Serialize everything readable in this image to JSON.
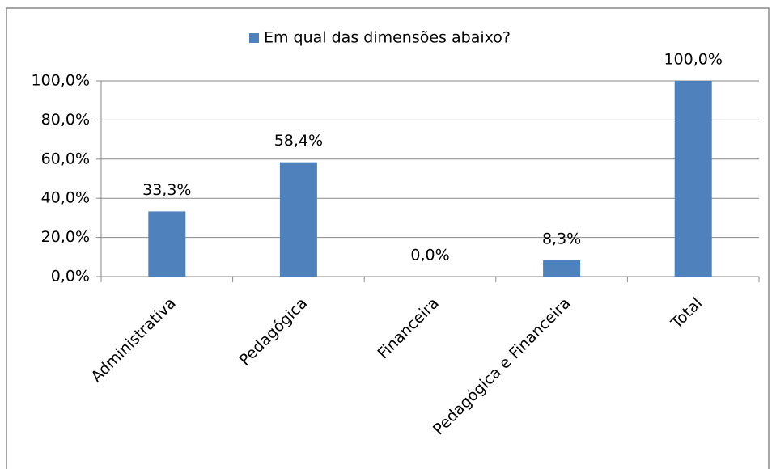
{
  "chart_data": {
    "type": "bar",
    "categories": [
      "Administrativa",
      "Pedagógica",
      "Financeira",
      "Pedagógica e Financeira",
      "Total"
    ],
    "series": [
      {
        "name": "Em qual das dimensões abaixo?",
        "color": "#4f81bd",
        "values": [
          33.3,
          58.4,
          0,
          8.3,
          100
        ],
        "value_labels": [
          "33,3%",
          "58,4%",
          "0,0%",
          "8,3%",
          "100,0%"
        ]
      }
    ],
    "ylim": [
      0,
      100
    ],
    "yticks": [
      {
        "value": 0,
        "label": "0,0%"
      },
      {
        "value": 20,
        "label": "20,0%"
      },
      {
        "value": 40,
        "label": "40,0%"
      },
      {
        "value": 60,
        "label": "60,0%"
      },
      {
        "value": 80,
        "label": "80,0%"
      },
      {
        "value": 100,
        "label": "100,0%"
      }
    ],
    "grid": true,
    "legend": "top"
  }
}
